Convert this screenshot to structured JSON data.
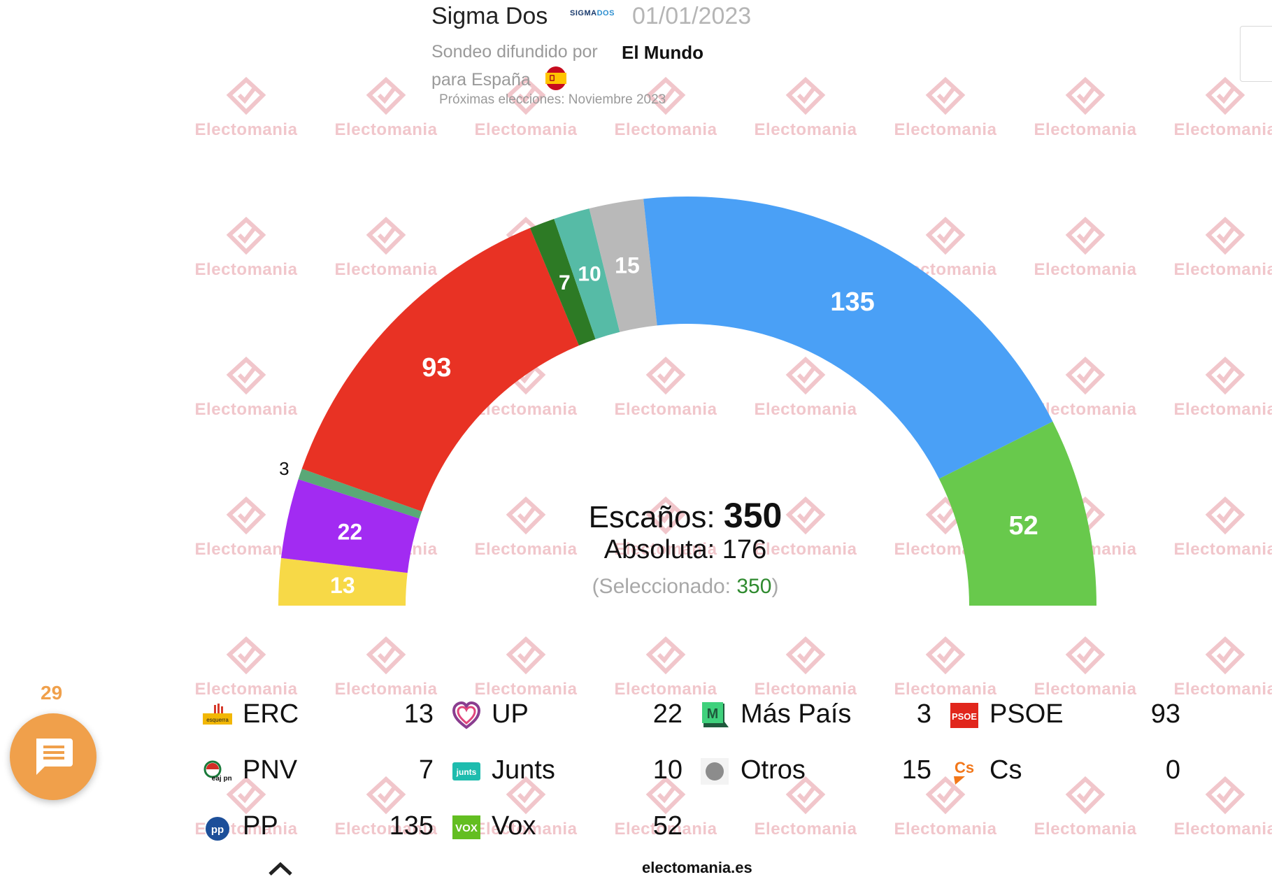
{
  "header": {
    "pollster": "Sigma Dos",
    "pollster_logo_a": "SIGMA",
    "pollster_logo_b": "DOS",
    "date": "01/01/2023",
    "disseminated_by_label": "Sondeo difundido por",
    "media": "El Mundo",
    "for_label": "para España",
    "next_elections": "Próximas elecciones: Noviembre 2023"
  },
  "watermark_text": "Electomania",
  "center": {
    "seats_label": "Escaños:",
    "seats_total": "350",
    "majority_label": "Absoluta:",
    "majority_value": "176",
    "selected_open": "(Seleccionado:",
    "selected_value": "350",
    "selected_close": ")"
  },
  "chart_data": {
    "type": "hemicycle",
    "total_seats": 350,
    "majority": 176,
    "seats_order": [
      {
        "party": "ERC",
        "seats": 13,
        "color": "#f7d947"
      },
      {
        "party": "UP",
        "seats": 22,
        "color": "#a22bf2"
      },
      {
        "party": "Más País",
        "seats": 3,
        "color": "#5aa877"
      },
      {
        "party": "PSOE",
        "seats": 93,
        "color": "#e83224"
      },
      {
        "party": "PNV",
        "seats": 7,
        "color": "#2d7a25"
      },
      {
        "party": "Junts",
        "seats": 10,
        "color": "#56bba6"
      },
      {
        "party": "Otros",
        "seats": 15,
        "color": "#b9b9b9"
      },
      {
        "party": "Cs",
        "seats": 0,
        "color": "#f2771a"
      },
      {
        "party": "PP",
        "seats": 135,
        "color": "#4aa0f6"
      },
      {
        "party": "Vox",
        "seats": 52,
        "color": "#68c94c"
      }
    ]
  },
  "legend": [
    {
      "name": "ERC",
      "value": "13",
      "icon": "erc-esquerra-icon"
    },
    {
      "name": "UP",
      "value": "22",
      "icon": "up-heart-icon"
    },
    {
      "name": "Más País",
      "value": "3",
      "icon": "mas-pais-icon"
    },
    {
      "name": "PSOE",
      "value": "93",
      "icon": "psoe-icon"
    },
    {
      "name": "PNV",
      "value": "7",
      "icon": "pnv-eaj-icon"
    },
    {
      "name": "Junts",
      "value": "10",
      "icon": "junts-icon"
    },
    {
      "name": "Otros",
      "value": "15",
      "icon": "otros-dot-icon"
    },
    {
      "name": "Cs",
      "value": "0",
      "icon": "cs-icon"
    },
    {
      "name": "PP",
      "value": "135",
      "icon": "pp-icon"
    },
    {
      "name": "Vox",
      "value": "52",
      "icon": "vox-icon"
    }
  ],
  "icon_labels": {
    "erc": "esquerra",
    "mas_pais": "M",
    "psoe": "PSOE",
    "pnv": "eaj pnv",
    "junts": "junts",
    "cs": "Cs",
    "pp": "pp",
    "vox": "VOX"
  },
  "comments": {
    "count": "29"
  },
  "footer": "electomania.es"
}
